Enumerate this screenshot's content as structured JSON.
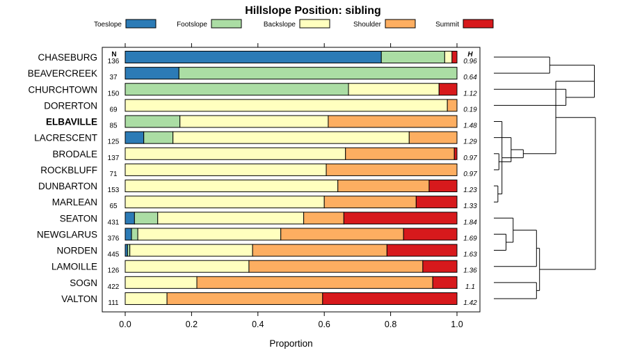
{
  "chart_data": {
    "type": "bar",
    "orientation": "horizontal",
    "stacked": true,
    "title": "Hillslope Position: sibling",
    "xlabel": "Proportion",
    "xlim": [
      0,
      1
    ],
    "xticks": [
      "0.0",
      "0.2",
      "0.4",
      "0.6",
      "0.8",
      "1.0"
    ],
    "n_header": "N",
    "h_header": "H",
    "highlight_category": "ELBAVILLE",
    "legend_position": "top",
    "series": [
      {
        "name": "Toeslope",
        "color": "#2c7bb6"
      },
      {
        "name": "Footslope",
        "color": "#abdda4"
      },
      {
        "name": "Backslope",
        "color": "#ffffbf"
      },
      {
        "name": "Shoulder",
        "color": "#fdae61"
      },
      {
        "name": "Summit",
        "color": "#d7191c"
      }
    ],
    "rows": [
      {
        "name": "CHASEBURG",
        "n": "136",
        "h": "0.96",
        "values": [
          0.772,
          0.191,
          0.022,
          0.0,
          0.015
        ]
      },
      {
        "name": "BEAVERCREEK",
        "n": "37",
        "h": "0.64",
        "values": [
          0.162,
          0.838,
          0.0,
          0.0,
          0.0
        ]
      },
      {
        "name": "CHURCHTOWN",
        "n": "150",
        "h": "1.12",
        "values": [
          0.0,
          0.673,
          0.273,
          0.0,
          0.054
        ]
      },
      {
        "name": "DORERTON",
        "n": "69",
        "h": "0.19",
        "values": [
          0.0,
          0.0,
          0.971,
          0.029,
          0.0
        ]
      },
      {
        "name": "ELBAVILLE",
        "n": "85",
        "h": "1.48",
        "values": [
          0.0,
          0.165,
          0.447,
          0.388,
          0.0
        ]
      },
      {
        "name": "LACRESCENT",
        "n": "125",
        "h": "1.29",
        "values": [
          0.056,
          0.088,
          0.712,
          0.144,
          0.0
        ]
      },
      {
        "name": "BRODALE",
        "n": "137",
        "h": "0.97",
        "values": [
          0.0,
          0.0,
          0.664,
          0.328,
          0.008
        ]
      },
      {
        "name": "ROCKBLUFF",
        "n": "71",
        "h": "0.97",
        "values": [
          0.0,
          0.0,
          0.606,
          0.394,
          0.0
        ]
      },
      {
        "name": "DUNBARTON",
        "n": "153",
        "h": "1.23",
        "values": [
          0.0,
          0.0,
          0.641,
          0.275,
          0.084
        ]
      },
      {
        "name": "MARLEAN",
        "n": "65",
        "h": "1.33",
        "values": [
          0.0,
          0.0,
          0.6,
          0.277,
          0.123
        ]
      },
      {
        "name": "SEATON",
        "n": "431",
        "h": "1.84",
        "values": [
          0.028,
          0.07,
          0.44,
          0.121,
          0.341
        ]
      },
      {
        "name": "NEWGLARUS",
        "n": "376",
        "h": "1.69",
        "values": [
          0.019,
          0.019,
          0.431,
          0.37,
          0.161
        ]
      },
      {
        "name": "NORDEN",
        "n": "445",
        "h": "1.63",
        "values": [
          0.007,
          0.007,
          0.37,
          0.405,
          0.211
        ]
      },
      {
        "name": "LAMOILLE",
        "n": "126",
        "h": "1.36",
        "values": [
          0.0,
          0.0,
          0.373,
          0.524,
          0.103
        ]
      },
      {
        "name": "SOGN",
        "n": "422",
        "h": "1.1",
        "values": [
          0.0,
          0.0,
          0.216,
          0.711,
          0.073
        ]
      },
      {
        "name": "VALTON",
        "n": "111",
        "h": "1.42",
        "values": [
          0.0,
          0.0,
          0.126,
          0.469,
          0.405
        ]
      }
    ],
    "dendrogram": {
      "height_range": [
        0,
        1
      ],
      "merges": [
        {
          "a": 0,
          "b": 1,
          "h": 0.55
        },
        {
          "a": 2,
          "b": 3,
          "h": 0.71
        },
        {
          "a": "m0",
          "b": "m1",
          "h": 0.99
        },
        {
          "a": 6,
          "b": 7,
          "h": 0.05
        },
        {
          "a": "m3",
          "b": 5,
          "h": 0.17
        },
        {
          "a": 8,
          "b": 9,
          "h": 0.04
        },
        {
          "a": "m5",
          "b": 4,
          "h": 0.08
        },
        {
          "a": "m4",
          "b": "m6",
          "h": 0.29
        },
        {
          "a": "m7",
          "b": "m2",
          "h": 0.61
        },
        {
          "a": 11,
          "b": 12,
          "h": 0.12
        },
        {
          "a": "m9",
          "b": 10,
          "h": 0.19
        },
        {
          "a": "m10",
          "b": 13,
          "h": 0.42
        },
        {
          "a": 14,
          "b": 15,
          "h": 0.42
        },
        {
          "a": "m11",
          "b": "m12",
          "h": 0.45
        },
        {
          "a": "m8",
          "b": "m13",
          "h": 1.0
        }
      ]
    }
  }
}
